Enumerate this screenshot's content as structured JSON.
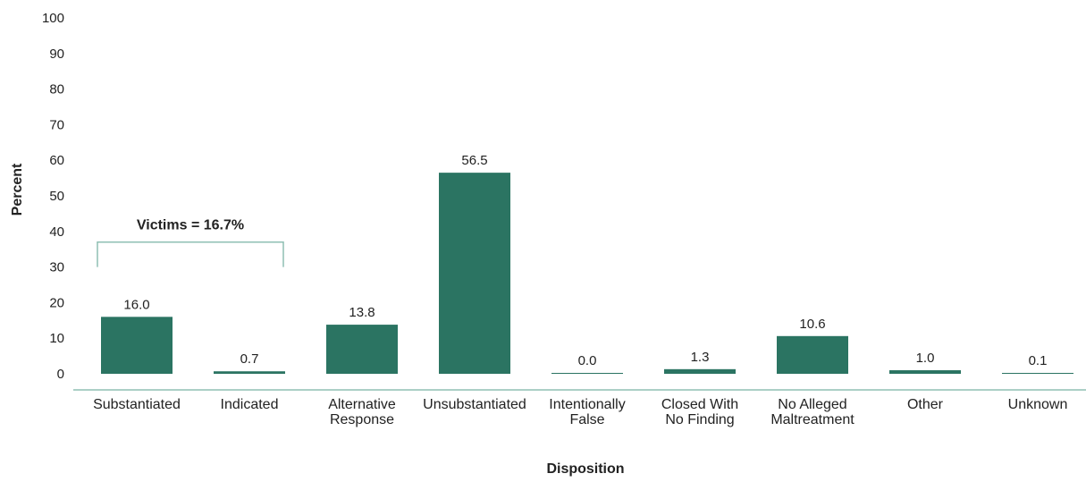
{
  "chart_data": {
    "type": "bar",
    "xlabel": "Disposition",
    "ylabel": "Percent",
    "ylim": [
      0,
      100
    ],
    "yticks": [
      "0",
      "10",
      "20",
      "30",
      "40",
      "50",
      "60",
      "70",
      "80",
      "90",
      "100"
    ],
    "categories": [
      [
        "Substantiated"
      ],
      [
        "Indicated"
      ],
      [
        "Alternative",
        "Response"
      ],
      [
        "Unsubstantiated"
      ],
      [
        "Intentionally",
        "False"
      ],
      [
        "Closed With",
        "No Finding"
      ],
      [
        "No Alleged",
        "Maltreatment"
      ],
      [
        "Other"
      ],
      [
        "Unknown"
      ]
    ],
    "values": [
      16.0,
      0.7,
      13.8,
      56.5,
      0.0,
      1.3,
      10.6,
      1.0,
      0.1
    ],
    "value_labels": [
      "16.0",
      "0.7",
      "13.8",
      "56.5",
      "0.0",
      "1.3",
      "10.6",
      "1.0",
      "0.1"
    ],
    "annotation": {
      "text": "Victims = 16.7%",
      "spans": [
        "Substantiated",
        "Indicated"
      ],
      "bracket_level": 37
    },
    "grid": false,
    "legend": "none",
    "colors": {
      "bar": "#2b7462",
      "axis": "#8fbfb3",
      "bracket": "#8fbfb3",
      "text": "#222222"
    }
  }
}
